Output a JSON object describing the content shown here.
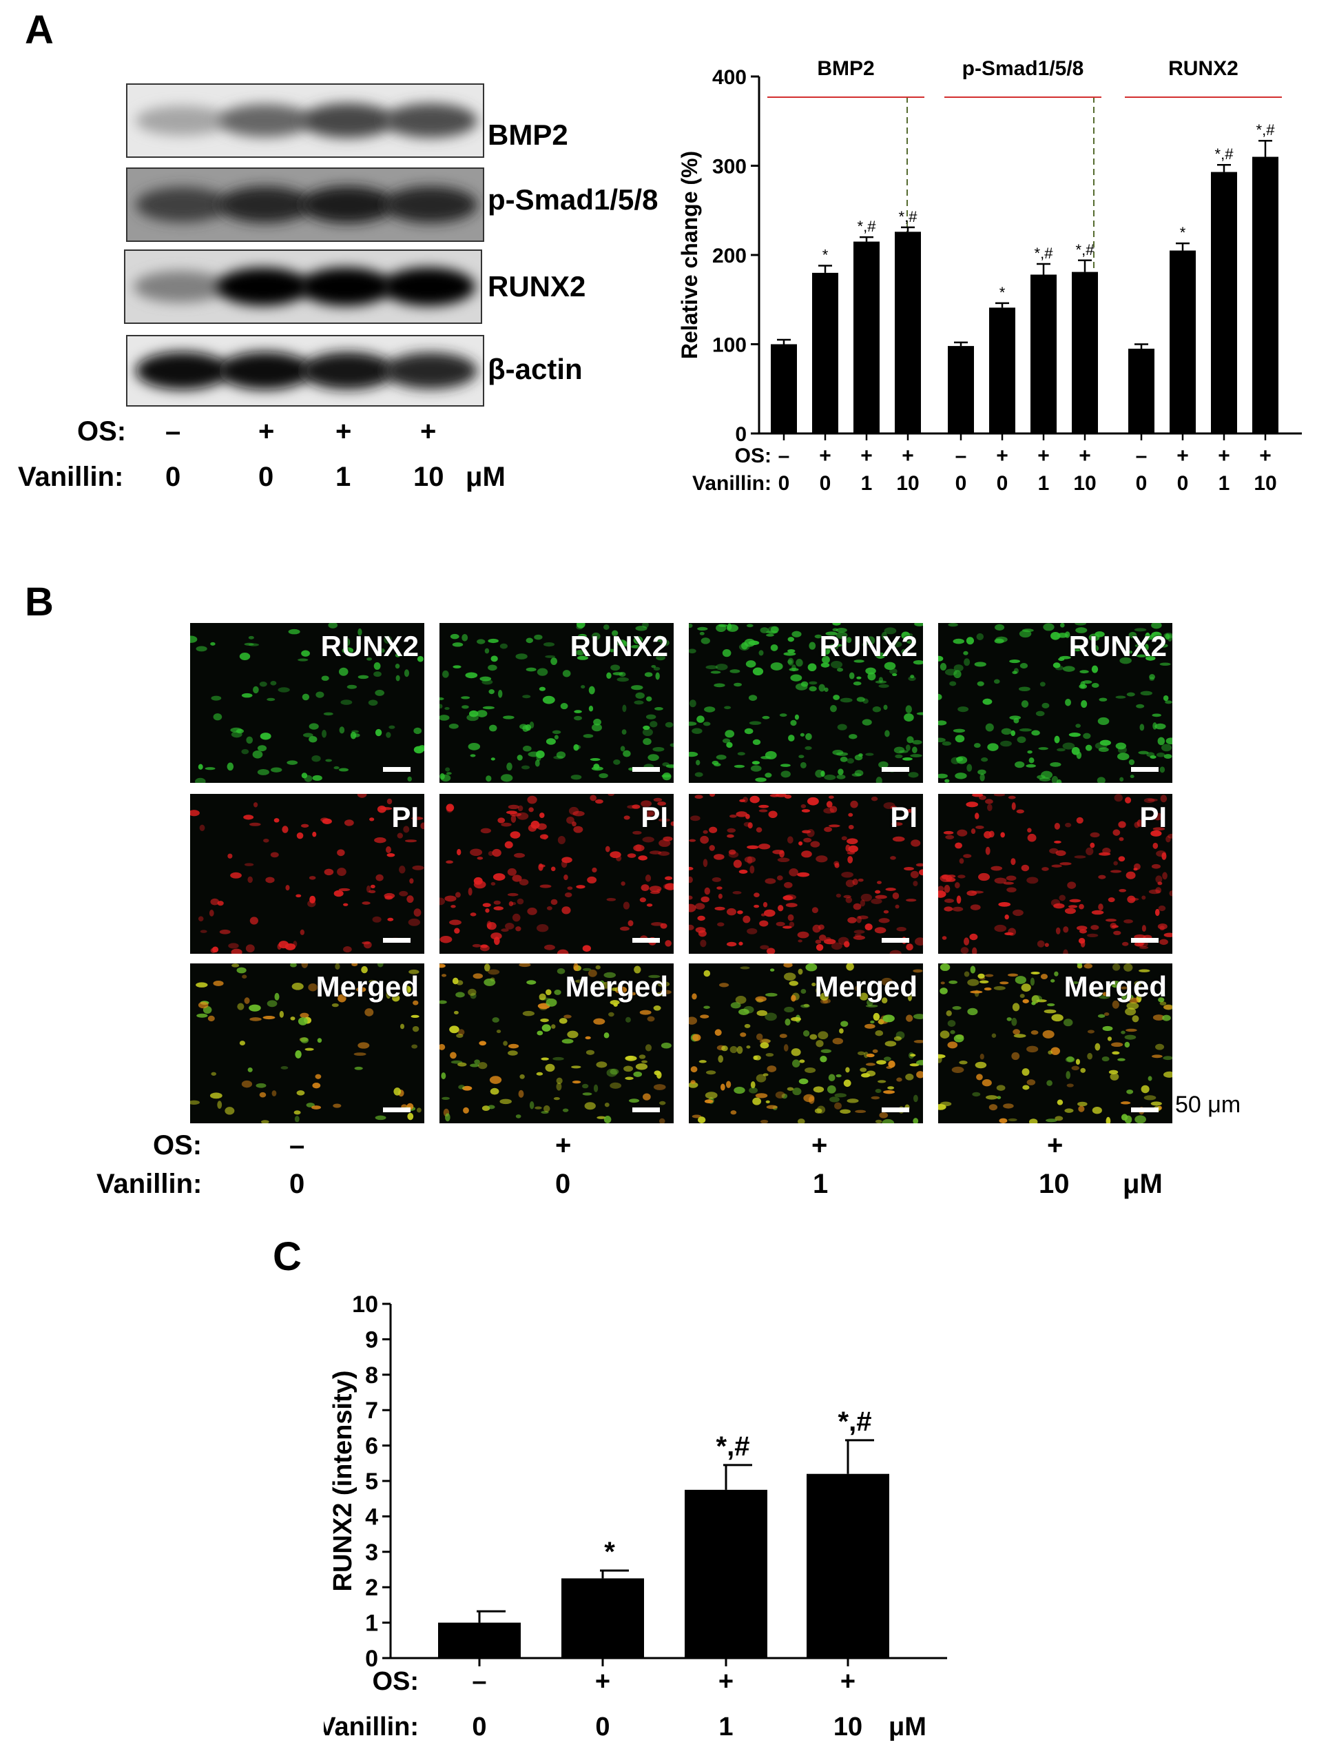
{
  "panels": {
    "A": "A",
    "B": "B",
    "C": "C"
  },
  "panelA": {
    "blot_labels": [
      "BMP2",
      "p-Smad1/5/8",
      "RUNX2",
      "β-actin"
    ],
    "os_label": "OS:",
    "os_values": [
      "–",
      "+",
      "+",
      "+"
    ],
    "vanillin_label": "Vanillin:",
    "vanillin_values": [
      "0",
      "0",
      "1",
      "10"
    ],
    "unit": "μM",
    "band_intensity": {
      "BMP2": [
        0.35,
        0.6,
        0.72,
        0.7
      ],
      "p-Smad1/5/8": [
        0.75,
        0.85,
        0.88,
        0.85
      ],
      "RUNX2": [
        0.5,
        0.98,
        1.0,
        1.0
      ],
      "β-actin": [
        0.95,
        0.95,
        0.92,
        0.85
      ]
    }
  },
  "panelB": {
    "channels": [
      "RUNX2",
      "PI",
      "Merged"
    ],
    "colors": {
      "RUNX2": "#2fbf2f",
      "PI": "#e02020",
      "Merged": "#d8a020"
    },
    "scale_label": "50 μm",
    "os_label": "OS:",
    "os_values": [
      "–",
      "+",
      "+",
      "+"
    ],
    "vanillin_label": "Vanillin:",
    "vanillin_values": [
      "0",
      "0",
      "1",
      "10"
    ],
    "unit": "μM"
  },
  "chart_data": [
    {
      "type": "bar",
      "title": "",
      "ylabel": "Relative change (%)",
      "ylim": [
        0,
        400
      ],
      "yticks": [
        "0",
        "100",
        "200",
        "300",
        "400"
      ],
      "groups": [
        "BMP2",
        "p-Smad1/5/8",
        "RUNX2"
      ],
      "categories": [
        "0",
        "0",
        "1",
        "10"
      ],
      "os_label": "OS:",
      "os_values": [
        "–",
        "+",
        "+",
        "+"
      ],
      "vanillin_label": "Vanillin:",
      "series": [
        {
          "name": "BMP2",
          "values": [
            100,
            180,
            215,
            226
          ],
          "errors": [
            5,
            8,
            5,
            5
          ],
          "significance": [
            "",
            "*",
            "*,#",
            "*,#"
          ]
        },
        {
          "name": "p-Smad1/5/8",
          "values": [
            98,
            141,
            178,
            181
          ],
          "errors": [
            4,
            5,
            12,
            13
          ],
          "significance": [
            "",
            "*",
            "*,#",
            "*,#"
          ]
        },
        {
          "name": "RUNX2",
          "values": [
            95,
            205,
            293,
            310
          ],
          "errors": [
            5,
            8,
            8,
            18
          ],
          "significance": [
            "",
            "*",
            "*,#",
            "*,#"
          ]
        }
      ]
    },
    {
      "type": "bar",
      "title": "",
      "ylabel": "RUNX2 (intensity)",
      "ylim": [
        0,
        10
      ],
      "yticks": [
        "0",
        "1",
        "2",
        "3",
        "4",
        "5",
        "6",
        "7",
        "8",
        "9",
        "10"
      ],
      "categories": [
        "0",
        "0",
        "1",
        "10"
      ],
      "os_label": "OS:",
      "os_values": [
        "–",
        "+",
        "+",
        "+"
      ],
      "vanillin_label": "Vanillin:",
      "unit": "μM",
      "values": [
        1.0,
        2.25,
        4.75,
        5.2
      ],
      "errors": [
        0.32,
        0.22,
        0.7,
        0.95
      ],
      "significance": [
        "",
        "*",
        "*,#",
        "*,#"
      ]
    }
  ]
}
